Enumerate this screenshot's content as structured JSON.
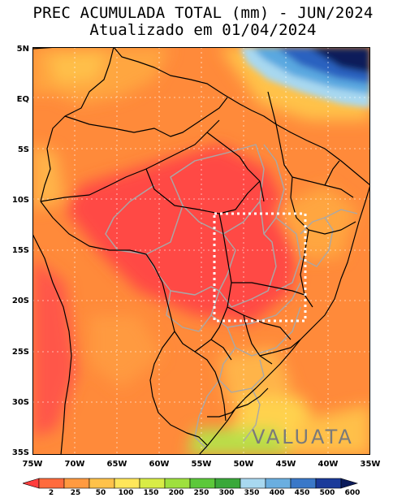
{
  "header": {
    "title": "PREC ACUMULADA TOTAL (mm) - JUN/2024",
    "subtitle": "Atualizado em 01/04/2024"
  },
  "map": {
    "lat_labels": [
      "5N",
      "EQ",
      "5S",
      "10S",
      "15S",
      "20S",
      "25S",
      "30S",
      "35S"
    ],
    "lon_labels": [
      "75W",
      "70W",
      "65W",
      "60W",
      "55W",
      "50W",
      "45W",
      "40W",
      "35W"
    ],
    "highlight_box": {
      "lon_west": -53,
      "lon_east": -43,
      "lat_north": -11.5,
      "lat_south": -22
    },
    "watermark": "VALUATA"
  },
  "colorbar": {
    "labels": [
      "2",
      "25",
      "50",
      "100",
      "150",
      "200",
      "250",
      "300",
      "350",
      "400",
      "450",
      "500",
      "600"
    ],
    "colors": [
      "#ff3d3d",
      "#ff6b3d",
      "#ff9a40",
      "#ffc24a",
      "#ffe65a",
      "#d8ec46",
      "#9ee03e",
      "#5cc83a",
      "#3aa83a",
      "#a8d8f0",
      "#6aaee0",
      "#3a78c8",
      "#1a3a9a",
      "#0a1a5a"
    ]
  }
}
